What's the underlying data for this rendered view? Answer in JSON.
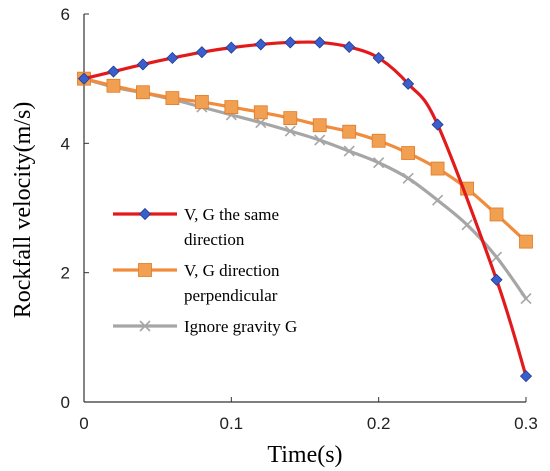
{
  "chart_data": {
    "type": "line",
    "xlabel": "Time(s)",
    "ylabel": "Rockfall velocity(m/s)",
    "xlim": [
      0,
      0.3
    ],
    "ylim": [
      0,
      6
    ],
    "x_ticks": [
      "0",
      "0.1",
      "0.2",
      "0.3"
    ],
    "y_ticks": [
      "0",
      "2",
      "4",
      "6"
    ],
    "grid": false,
    "legend_position": "center-left",
    "x": [
      0,
      0.02,
      0.04,
      0.06,
      0.08,
      0.1,
      0.12,
      0.14,
      0.16,
      0.18,
      0.2,
      0.22,
      0.24,
      0.26,
      0.28,
      0.3
    ],
    "series": [
      {
        "name": "V, G the same direction",
        "legend_lines": [
          "V, G the same",
          "direction"
        ],
        "line_color": "#e31a1c",
        "marker": "diamond",
        "marker_color": "#3a5fcd",
        "x": [
          0,
          0.02,
          0.04,
          0.06,
          0.08,
          0.1,
          0.12,
          0.14,
          0.16,
          0.18,
          0.2,
          0.22,
          0.24,
          0.28,
          0.3
        ],
        "values": [
          5.0,
          5.11,
          5.22,
          5.32,
          5.41,
          5.48,
          5.53,
          5.56,
          5.56,
          5.49,
          5.32,
          4.92,
          4.29,
          1.89,
          0.4
        ]
      },
      {
        "name": "V, G direction perpendicular",
        "legend_lines": [
          "V, G direction",
          "perpendicular"
        ],
        "line_color": "#f08c3c",
        "marker": "square",
        "marker_color": "#f0a050",
        "x": [
          0,
          0.02,
          0.04,
          0.06,
          0.08,
          0.1,
          0.12,
          0.14,
          0.16,
          0.18,
          0.2,
          0.22,
          0.24,
          0.26,
          0.28,
          0.3
        ],
        "values": [
          5.0,
          4.89,
          4.79,
          4.7,
          4.64,
          4.56,
          4.48,
          4.39,
          4.28,
          4.18,
          4.04,
          3.85,
          3.61,
          3.3,
          2.9,
          2.48
        ]
      },
      {
        "name": "Ignore gravity G",
        "legend_lines": [
          "Ignore gravity G"
        ],
        "line_color": "#a6a6a6",
        "marker": "x",
        "marker_color": "#a6a6a6",
        "x": [
          0,
          0.02,
          0.04,
          0.06,
          0.08,
          0.1,
          0.12,
          0.14,
          0.16,
          0.18,
          0.2,
          0.22,
          0.24,
          0.26,
          0.28,
          0.3
        ],
        "values": [
          5.0,
          4.87,
          4.78,
          4.68,
          4.56,
          4.44,
          4.32,
          4.19,
          4.05,
          3.88,
          3.7,
          3.46,
          3.12,
          2.74,
          2.24,
          1.6
        ]
      }
    ]
  }
}
